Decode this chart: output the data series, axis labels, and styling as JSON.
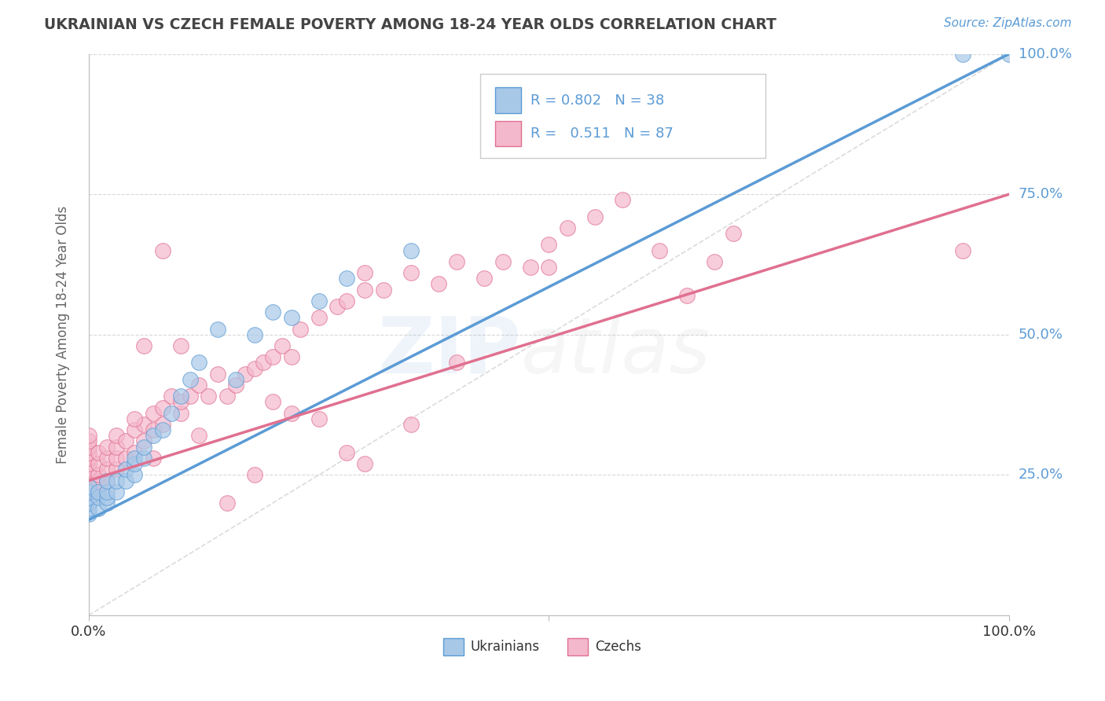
{
  "title": "UKRAINIAN VS CZECH FEMALE POVERTY AMONG 18-24 YEAR OLDS CORRELATION CHART",
  "source": "Source: ZipAtlas.com",
  "ylabel": "Female Poverty Among 18-24 Year Olds",
  "xlim": [
    0,
    1.0
  ],
  "ylim": [
    0,
    1.0
  ],
  "xticks": [
    0.0,
    0.5,
    1.0
  ],
  "xticklabels": [
    "0.0%",
    "",
    "100.0%"
  ],
  "yticks": [
    0.0,
    0.25,
    0.5,
    0.75,
    1.0
  ],
  "yticklabels_right": [
    "",
    "25.0%",
    "50.0%",
    "75.0%",
    "100.0%"
  ],
  "r_ukrainian": 0.802,
  "n_ukrainian": 38,
  "r_czech": 0.511,
  "n_czech": 87,
  "title_color": "#444444",
  "source_color": "#5b9bd5",
  "bg_color": "#ffffff",
  "grid_color": "#d0d0d0",
  "scatter_ukrainian_color": "#a8c8e8",
  "scatter_ukrainian_edge": "#5b9bd5",
  "scatter_czech_color": "#f4b8cc",
  "scatter_czech_edge": "#e07090",
  "line_ukrainian_color": "#5b9bd5",
  "line_czech_color": "#e07090",
  "diagonal_color": "#cccccc",
  "tick_label_color": "#5b9bd5",
  "watermark_zip_color": "#5b9bd5",
  "watermark_atlas_color": "#aaaaaa",
  "ukr_x": [
    0.0,
    0.0,
    0.0,
    0.0,
    0.0,
    0.0,
    0.01,
    0.01,
    0.01,
    0.02,
    0.02,
    0.02,
    0.02,
    0.03,
    0.03,
    0.04,
    0.04,
    0.05,
    0.05,
    0.05,
    0.06,
    0.06,
    0.07,
    0.08,
    0.09,
    0.1,
    0.11,
    0.12,
    0.14,
    0.16,
    0.18,
    0.2,
    0.22,
    0.25,
    0.28,
    0.35,
    0.95,
    1.0
  ],
  "ukr_y": [
    0.18,
    0.19,
    0.2,
    0.21,
    0.22,
    0.23,
    0.19,
    0.21,
    0.22,
    0.2,
    0.21,
    0.22,
    0.24,
    0.22,
    0.24,
    0.24,
    0.26,
    0.25,
    0.27,
    0.28,
    0.28,
    0.3,
    0.32,
    0.33,
    0.36,
    0.39,
    0.42,
    0.45,
    0.51,
    0.42,
    0.5,
    0.54,
    0.53,
    0.56,
    0.6,
    0.65,
    1.0,
    1.0
  ],
  "czk_x": [
    0.0,
    0.0,
    0.0,
    0.0,
    0.0,
    0.0,
    0.0,
    0.0,
    0.0,
    0.0,
    0.0,
    0.01,
    0.01,
    0.01,
    0.01,
    0.01,
    0.02,
    0.02,
    0.02,
    0.02,
    0.03,
    0.03,
    0.03,
    0.03,
    0.04,
    0.04,
    0.05,
    0.05,
    0.06,
    0.06,
    0.07,
    0.07,
    0.08,
    0.08,
    0.09,
    0.1,
    0.1,
    0.11,
    0.12,
    0.13,
    0.14,
    0.15,
    0.16,
    0.17,
    0.18,
    0.19,
    0.2,
    0.21,
    0.22,
    0.23,
    0.25,
    0.27,
    0.28,
    0.3,
    0.3,
    0.32,
    0.35,
    0.38,
    0.4,
    0.43,
    0.45,
    0.48,
    0.5,
    0.52,
    0.55,
    0.58,
    0.62,
    0.65,
    0.68,
    0.7,
    0.5,
    0.2,
    0.22,
    0.1,
    0.12,
    0.3,
    0.35,
    0.4,
    0.08,
    0.06,
    0.25,
    0.28,
    0.15,
    0.18,
    0.05,
    0.07,
    0.95
  ],
  "czk_y": [
    0.2,
    0.22,
    0.24,
    0.25,
    0.26,
    0.27,
    0.28,
    0.29,
    0.3,
    0.31,
    0.32,
    0.22,
    0.24,
    0.25,
    0.27,
    0.29,
    0.24,
    0.26,
    0.28,
    0.3,
    0.26,
    0.28,
    0.3,
    0.32,
    0.28,
    0.31,
    0.29,
    0.33,
    0.31,
    0.34,
    0.33,
    0.36,
    0.34,
    0.37,
    0.39,
    0.36,
    0.38,
    0.39,
    0.41,
    0.39,
    0.43,
    0.39,
    0.41,
    0.43,
    0.44,
    0.45,
    0.46,
    0.48,
    0.46,
    0.51,
    0.53,
    0.55,
    0.56,
    0.58,
    0.61,
    0.58,
    0.61,
    0.59,
    0.63,
    0.6,
    0.63,
    0.62,
    0.66,
    0.69,
    0.71,
    0.74,
    0.65,
    0.57,
    0.63,
    0.68,
    0.62,
    0.38,
    0.36,
    0.48,
    0.32,
    0.27,
    0.34,
    0.45,
    0.65,
    0.48,
    0.35,
    0.29,
    0.2,
    0.25,
    0.35,
    0.28,
    0.65
  ]
}
